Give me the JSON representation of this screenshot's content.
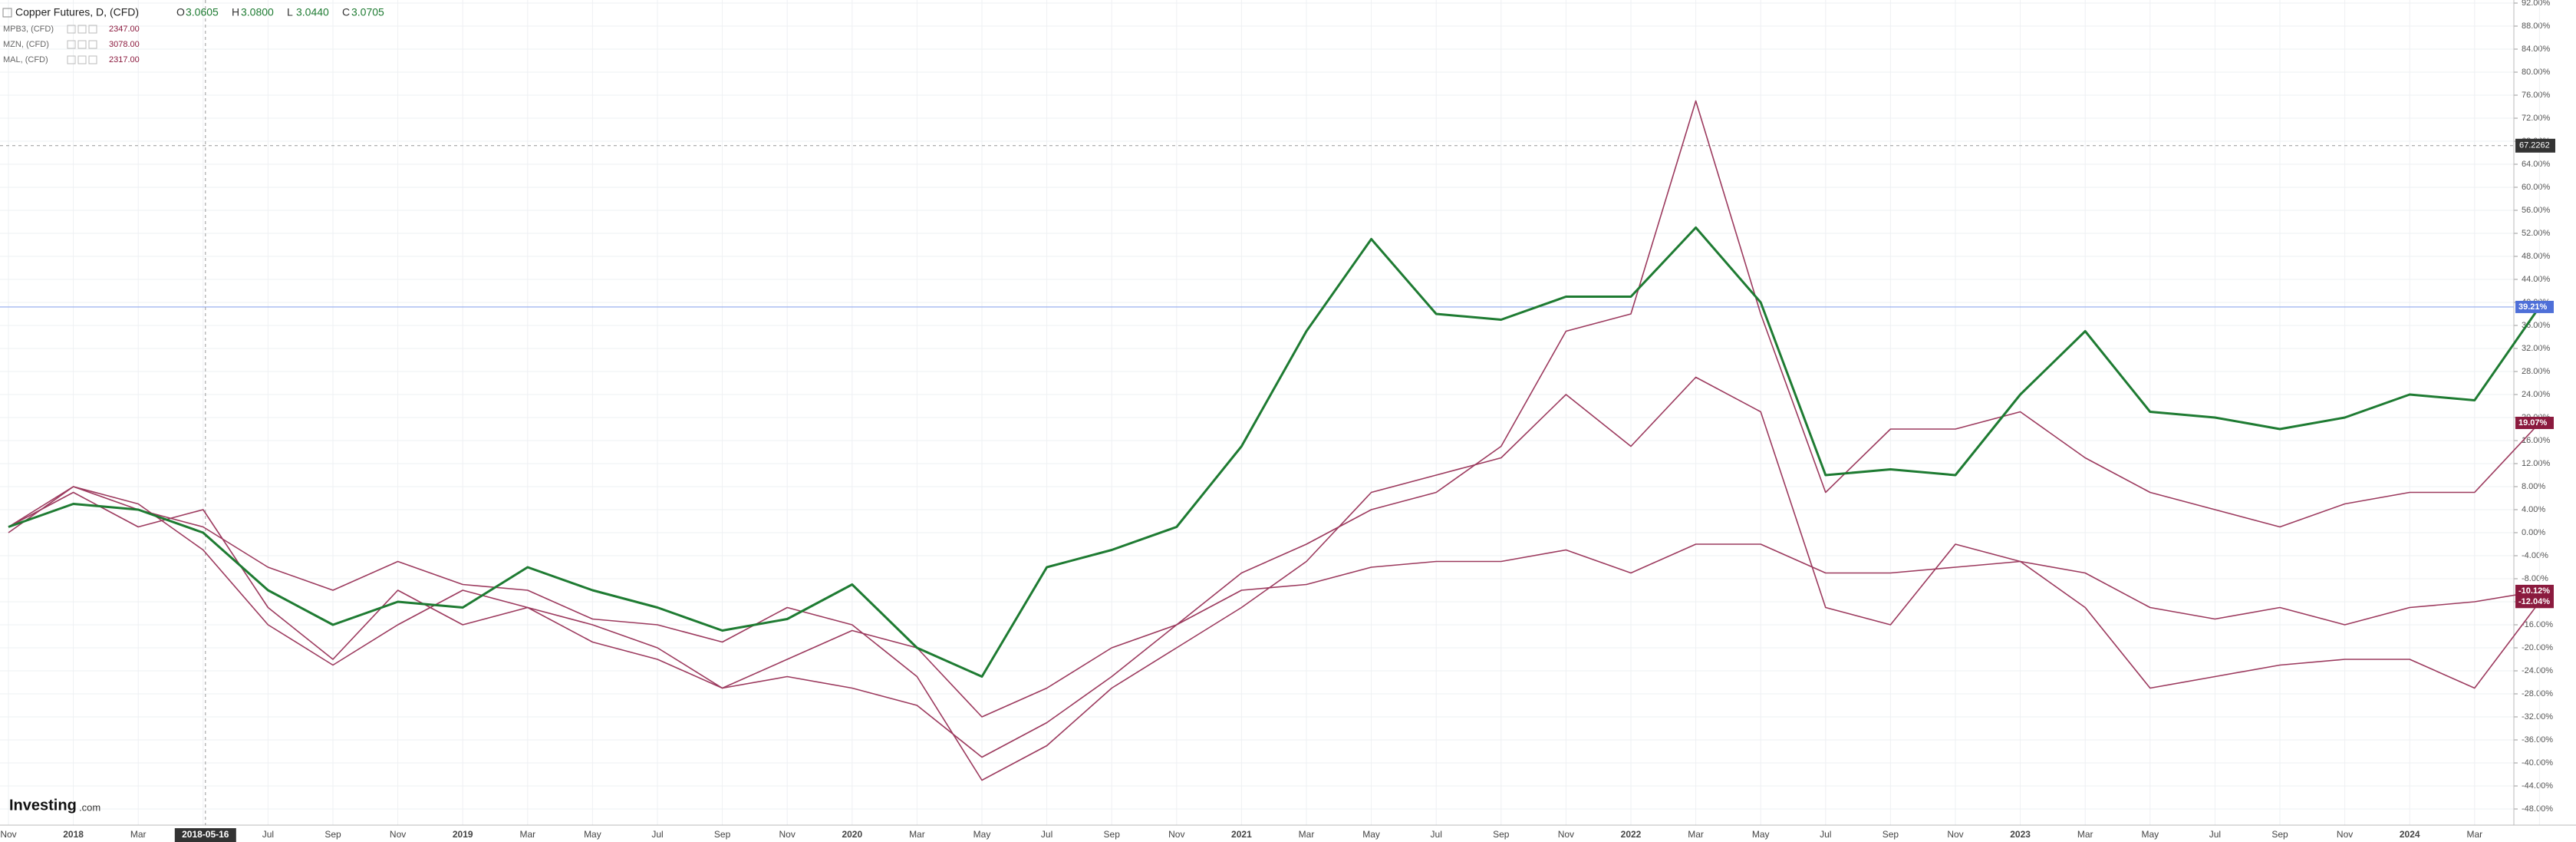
{
  "header": {
    "ohlc": [
      [
        "O",
        "3.0605"
      ],
      [
        "H",
        "3.0800"
      ],
      [
        "L",
        "3.0440"
      ],
      [
        "C",
        "3.0705"
      ]
    ]
  },
  "watermark": [
    "Investing",
    ".com"
  ],
  "chart_data": {
    "type": "line",
    "categories": [
      "Nov",
      "2018",
      "Mar",
      null,
      "Jul",
      "Sep",
      "Nov",
      "2019",
      "Mar",
      "May",
      "Jul",
      "Sep",
      "Nov",
      "2020",
      "Mar",
      "May",
      "Jul",
      "Sep",
      "Nov",
      "2021",
      "Mar",
      "May",
      "Jul",
      "Sep",
      "Nov",
      "2022",
      "Mar",
      "May",
      "Jul",
      "Sep",
      "Nov",
      "2023",
      "Mar",
      "May",
      "Jul",
      "Sep",
      "Nov",
      "2024",
      "Mar",
      null
    ],
    "series": [
      {
        "name": "Copper Futures, D, (CFD)",
        "color": "#1e7b32",
        "values": [
          1,
          5,
          4,
          0,
          -10,
          -16,
          -12,
          -13,
          -6,
          -10,
          -13,
          -17,
          -15,
          -9,
          -20,
          -25,
          -6,
          -3,
          1,
          15,
          35,
          51,
          38,
          37,
          41,
          41,
          53,
          40,
          10,
          11,
          10,
          24,
          35,
          21,
          20,
          18,
          20,
          24,
          23,
          39.21
        ],
        "value_labels": [
          null,
          null,
          null,
          null,
          null,
          null,
          null,
          null,
          null,
          null,
          null,
          null,
          null,
          null,
          null,
          null,
          null,
          null,
          null,
          null,
          null,
          null,
          null,
          null,
          null,
          null,
          null,
          null,
          null,
          null,
          null,
          null,
          null,
          null,
          null,
          null,
          null,
          null,
          null,
          "39.21%"
        ],
        "label_color": "#4e6fd8"
      },
      {
        "name": "MPB3, (CFD)",
        "last": "2347.00",
        "color": "#9c3a5e",
        "values": [
          1,
          7,
          1,
          4,
          -13,
          -22,
          -10,
          -16,
          -13,
          -16,
          -20,
          -27,
          -25,
          -27,
          -30,
          -39,
          -33,
          -25,
          -16,
          -7,
          -2,
          4,
          7,
          15,
          35,
          38,
          75,
          38,
          7,
          18,
          18,
          21,
          13,
          7,
          4,
          1,
          5,
          7,
          7,
          19.07
        ],
        "value_labels": [
          null,
          null,
          null,
          null,
          null,
          null,
          null,
          null,
          null,
          null,
          null,
          null,
          null,
          null,
          null,
          null,
          null,
          null,
          null,
          null,
          null,
          null,
          null,
          null,
          null,
          null,
          null,
          null,
          null,
          null,
          null,
          null,
          null,
          null,
          null,
          null,
          null,
          null,
          null,
          "19.07%"
        ],
        "label_color": "#8b1a3e"
      },
      {
        "name": "MZN, (CFD)",
        "last": "3078.00",
        "color": "#9c3a5e",
        "values": [
          1,
          8,
          4,
          1,
          -6,
          -10,
          -5,
          -9,
          -10,
          -15,
          -16,
          -19,
          -13,
          -16,
          -25,
          -43,
          -37,
          -27,
          -20,
          -13,
          -5,
          7,
          10,
          13,
          24,
          15,
          27,
          21,
          -13,
          -16,
          -2,
          -5,
          -7,
          -13,
          -15,
          -13,
          -16,
          -13,
          -12,
          -10.12
        ],
        "value_labels": [
          null,
          null,
          null,
          null,
          null,
          null,
          null,
          null,
          null,
          null,
          null,
          null,
          null,
          null,
          null,
          null,
          null,
          null,
          null,
          null,
          null,
          null,
          null,
          null,
          null,
          null,
          null,
          null,
          null,
          null,
          null,
          null,
          null,
          null,
          null,
          null,
          null,
          null,
          null,
          "-10.12%"
        ],
        "label_color": "#8b1a3e"
      },
      {
        "name": "MAL, (CFD)",
        "last": "2317.00",
        "color": "#9c3a5e",
        "values": [
          0,
          8,
          5,
          -3,
          -16,
          -23,
          -16,
          -10,
          -13,
          -19,
          -22,
          -27,
          -22,
          -17,
          -20,
          -32,
          -27,
          -20,
          -16,
          -10,
          -9,
          -6,
          -5,
          -5,
          -3,
          -7,
          -2,
          -2,
          -7,
          -7,
          -6,
          -5,
          -13,
          -27,
          -25,
          -23,
          -22,
          -22,
          -27,
          -12.04
        ],
        "value_labels": [
          null,
          null,
          null,
          null,
          null,
          null,
          null,
          null,
          null,
          null,
          null,
          null,
          null,
          null,
          null,
          null,
          null,
          null,
          null,
          null,
          null,
          null,
          null,
          null,
          null,
          null,
          null,
          null,
          null,
          null,
          null,
          null,
          null,
          null,
          null,
          null,
          null,
          null,
          null,
          "-12.04%"
        ],
        "label_color": "#8b1a3e"
      }
    ],
    "ylim": [
      -48,
      92
    ],
    "yticks": [
      {
        "value": 92,
        "label": "92.00%"
      },
      {
        "value": 88,
        "label": "88.00%"
      },
      {
        "value": 84,
        "label": "84.00%"
      },
      {
        "value": 80,
        "label": "80.00%"
      },
      {
        "value": 76,
        "label": "76.00%"
      },
      {
        "value": 72,
        "label": "72.00%"
      },
      {
        "value": 68,
        "label": "68.00%"
      },
      {
        "value": 64,
        "label": "64.00%"
      },
      {
        "value": 60,
        "label": "60.00%"
      },
      {
        "value": 56,
        "label": "56.00%"
      },
      {
        "value": 52,
        "label": "52.00%"
      },
      {
        "value": 48,
        "label": "48.00%"
      },
      {
        "value": 44,
        "label": "44.00%"
      },
      {
        "value": 40,
        "label": "40.00%"
      },
      {
        "value": 36,
        "label": "36.00%"
      },
      {
        "value": 32,
        "label": "32.00%"
      },
      {
        "value": 28,
        "label": "28.00%"
      },
      {
        "value": 24,
        "label": "24.00%"
      },
      {
        "value": 20,
        "label": "20.00%"
      },
      {
        "value": 16,
        "label": "16.00%"
      },
      {
        "value": 12,
        "label": "12.00%"
      },
      {
        "value": 8,
        "label": "8.00%"
      },
      {
        "value": 4,
        "label": "4.00%"
      },
      {
        "value": 0,
        "label": "0.00%"
      },
      {
        "value": -4,
        "label": "-4.00%"
      },
      {
        "value": -8,
        "label": "-8.00%"
      },
      {
        "value": -12,
        "label": "-12.00%"
      },
      {
        "value": -16,
        "label": "-16.00%"
      },
      {
        "value": -20,
        "label": "-20.00%"
      },
      {
        "value": -24,
        "label": "-24.00%"
      },
      {
        "value": -28,
        "label": "-28.00%"
      },
      {
        "value": -32,
        "label": "-32.00%"
      },
      {
        "value": -36,
        "label": "-36.00%"
      },
      {
        "value": -40,
        "label": "-40.00%"
      },
      {
        "value": -44,
        "label": "-44.00%"
      },
      {
        "value": -48,
        "label": "-48.00%"
      }
    ],
    "grid": true,
    "crosshair": {
      "y": 67.2262,
      "x_label": "2018-05-16"
    }
  }
}
